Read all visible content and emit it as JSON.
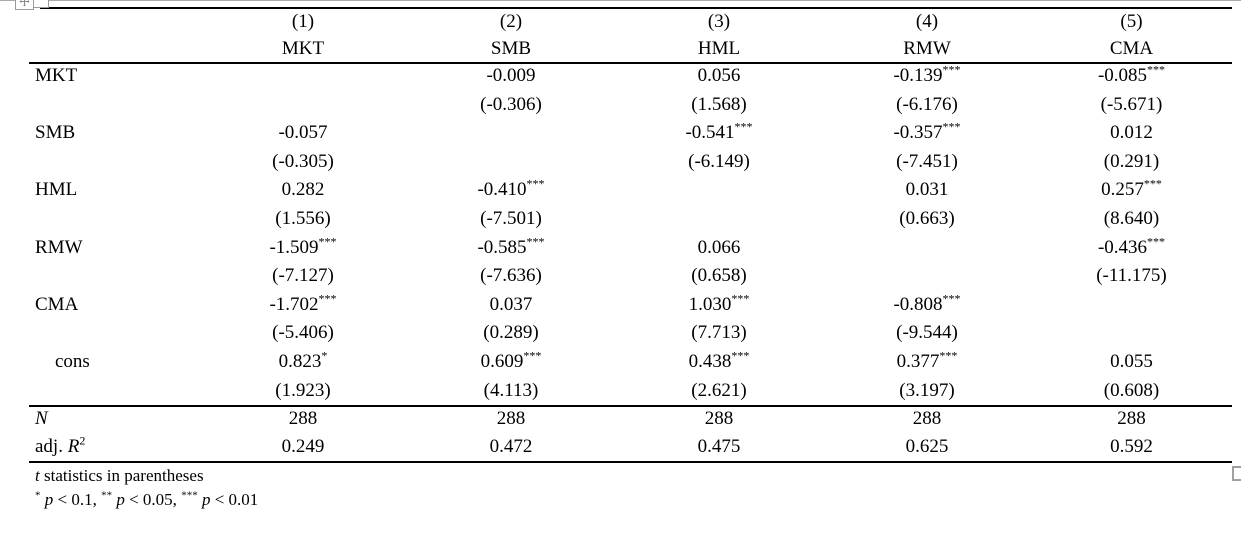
{
  "app": {
    "background": "#ffffff",
    "line_color": "#000000",
    "handle_color": "#9a9a9a",
    "icons": {
      "move_handle": "table-move-handle",
      "resize_handle": "table-resize-handle"
    }
  },
  "table": {
    "model_numbers": [
      "(1)",
      "(2)",
      "(3)",
      "(4)",
      "(5)"
    ],
    "model_names": [
      "MKT",
      "SMB",
      "HML",
      "RMW",
      "CMA"
    ],
    "body_rows": [
      {
        "label": "MKT",
        "indent": false,
        "cells": [
          null,
          {
            "v": "-0.009",
            "s": "",
            "t": "(-0.306)"
          },
          {
            "v": "0.056",
            "s": "",
            "t": "(1.568)"
          },
          {
            "v": "-0.139",
            "s": "***",
            "t": "(-6.176)"
          },
          {
            "v": "-0.085",
            "s": "***",
            "t": "(-5.671)"
          }
        ]
      },
      {
        "label": "SMB",
        "indent": false,
        "cells": [
          {
            "v": "-0.057",
            "s": "",
            "t": "(-0.305)"
          },
          null,
          {
            "v": "-0.541",
            "s": "***",
            "t": "(-6.149)"
          },
          {
            "v": "-0.357",
            "s": "***",
            "t": "(-7.451)"
          },
          {
            "v": "0.012",
            "s": "",
            "t": "(0.291)"
          }
        ]
      },
      {
        "label": "HML",
        "indent": false,
        "cells": [
          {
            "v": "0.282",
            "s": "",
            "t": "(1.556)"
          },
          {
            "v": "-0.410",
            "s": "***",
            "t": "(-7.501)"
          },
          null,
          {
            "v": "0.031",
            "s": "",
            "t": "(0.663)"
          },
          {
            "v": "0.257",
            "s": "***",
            "t": "(8.640)"
          }
        ]
      },
      {
        "label": "RMW",
        "indent": false,
        "cells": [
          {
            "v": "-1.509",
            "s": "***",
            "t": "(-7.127)"
          },
          {
            "v": "-0.585",
            "s": "***",
            "t": "(-7.636)"
          },
          {
            "v": "0.066",
            "s": "",
            "t": "(0.658)"
          },
          null,
          {
            "v": "-0.436",
            "s": "***",
            "t": "(-11.175)"
          }
        ]
      },
      {
        "label": "CMA",
        "indent": false,
        "cells": [
          {
            "v": "-1.702",
            "s": "***",
            "t": "(-5.406)"
          },
          {
            "v": "0.037",
            "s": "",
            "t": "(0.289)"
          },
          {
            "v": "1.030",
            "s": "***",
            "t": "(7.713)"
          },
          {
            "v": "-0.808",
            "s": "***",
            "t": "(-9.544)"
          },
          null
        ]
      },
      {
        "label": "cons",
        "indent": true,
        "cells": [
          {
            "v": "0.823",
            "s": "*",
            "t": "(1.923)"
          },
          {
            "v": "0.609",
            "s": "***",
            "t": "(4.113)"
          },
          {
            "v": "0.438",
            "s": "***",
            "t": "(2.621)"
          },
          {
            "v": "0.377",
            "s": "***",
            "t": "(3.197)"
          },
          {
            "v": "0.055",
            "s": "",
            "t": "(0.608)"
          }
        ]
      }
    ],
    "stats_rows": [
      {
        "name": "N",
        "label_parts": [
          {
            "t": "N",
            "i": true
          }
        ],
        "values": [
          "288",
          "288",
          "288",
          "288",
          "288"
        ]
      },
      {
        "name": "adj-r2",
        "label_parts": [
          {
            "t": "adj. "
          },
          {
            "t": "R",
            "i": true
          },
          {
            "t": "2",
            "sup": true
          }
        ],
        "values": [
          "0.249",
          "0.472",
          "0.475",
          "0.625",
          "0.592"
        ]
      }
    ],
    "footnotes": [
      {
        "name": "tstat-note",
        "parts": [
          {
            "t": "t",
            "i": true
          },
          {
            "t": " statistics in parentheses"
          }
        ]
      },
      {
        "name": "significance-note",
        "parts": [
          {
            "t": "*",
            "sup": true
          },
          {
            "t": " "
          },
          {
            "t": "p",
            "i": true
          },
          {
            "t": " < 0.1, "
          },
          {
            "t": "**",
            "sup": true
          },
          {
            "t": " "
          },
          {
            "t": "p",
            "i": true
          },
          {
            "t": " < 0.05, "
          },
          {
            "t": "***",
            "sup": true
          },
          {
            "t": " "
          },
          {
            "t": "p",
            "i": true
          },
          {
            "t": " < 0.01"
          }
        ]
      }
    ]
  }
}
